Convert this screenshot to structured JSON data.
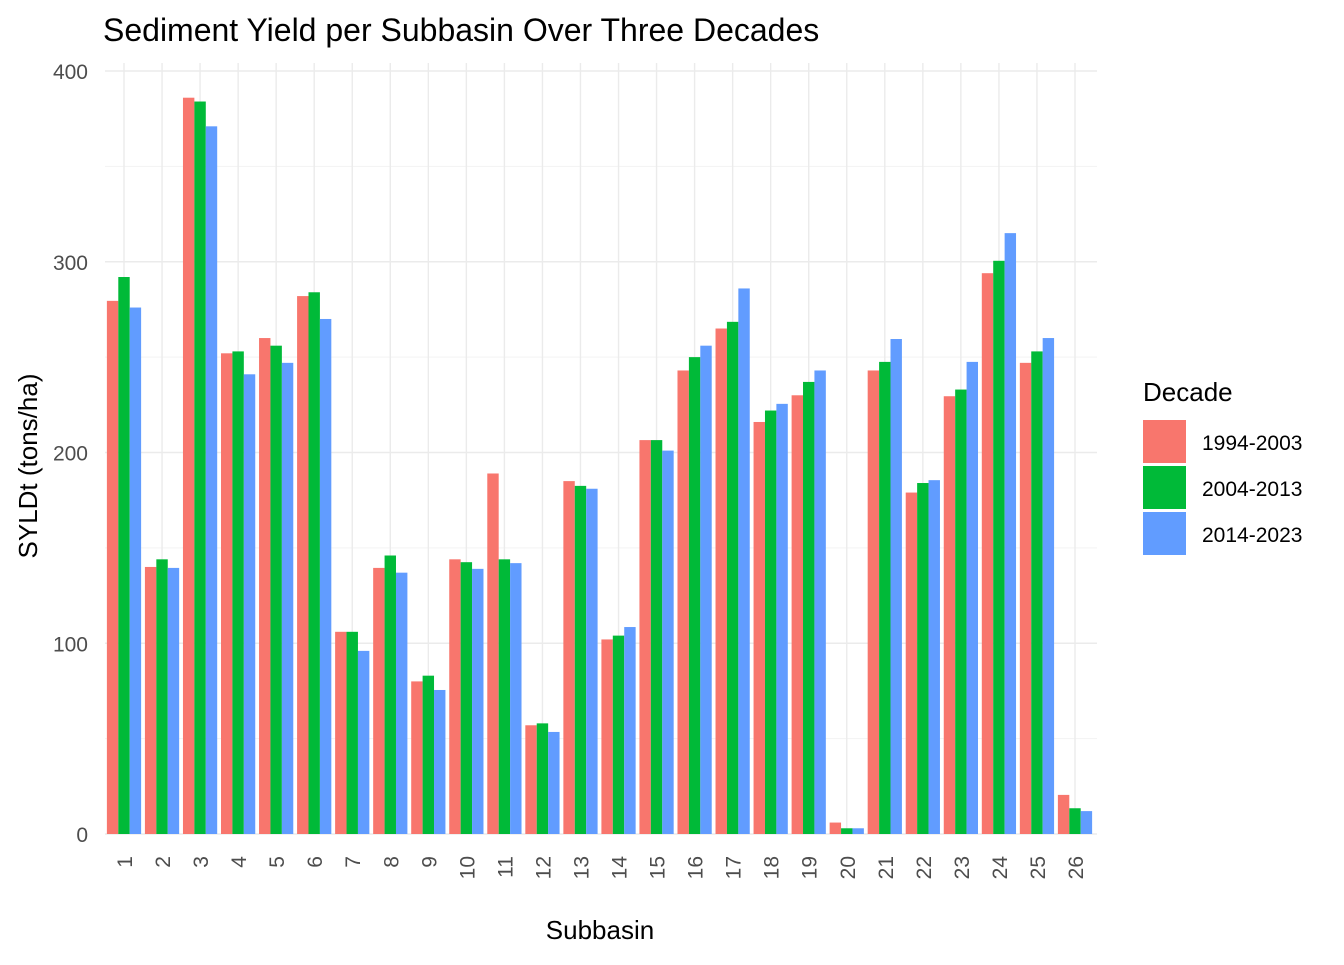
{
  "chart_data": {
    "type": "bar",
    "title": "Sediment Yield per Subbasin Over Three Decades",
    "xlabel": "Subbasin",
    "ylabel": "SYLDt (tons/ha)",
    "ylim": [
      0,
      400
    ],
    "yticks": [
      0,
      100,
      200,
      300,
      400
    ],
    "grid": true,
    "legend": {
      "title": "Decade",
      "placement": "right"
    },
    "categories": [
      "1",
      "2",
      "3",
      "4",
      "5",
      "6",
      "7",
      "8",
      "9",
      "10",
      "11",
      "12",
      "13",
      "14",
      "15",
      "16",
      "17",
      "18",
      "19",
      "20",
      "21",
      "22",
      "23",
      "24",
      "25",
      "26"
    ],
    "series": [
      {
        "name": "1994-2003",
        "color": "#F8766D",
        "values": [
          279.5,
          140,
          386,
          252,
          260,
          282,
          106,
          139.5,
          80,
          144,
          189,
          57,
          185,
          102,
          206.5,
          243,
          265,
          216,
          230,
          6,
          243,
          179,
          229.5,
          294,
          247,
          20.5
        ]
      },
      {
        "name": "2004-2013",
        "color": "#00BA38",
        "values": [
          292,
          144,
          384,
          253,
          256,
          284,
          106,
          146,
          83,
          142.5,
          144,
          58,
          182.5,
          104,
          206.5,
          250,
          268.5,
          222,
          237,
          3,
          247.5,
          184,
          233,
          300.5,
          253,
          13.5
        ]
      },
      {
        "name": "2014-2023",
        "color": "#619CFF",
        "values": [
          276,
          139.5,
          371,
          241,
          247,
          270,
          96,
          137,
          75.5,
          139,
          142,
          53.5,
          181,
          108.5,
          201,
          256,
          286,
          225.5,
          243,
          3,
          259.5,
          185.5,
          247.5,
          315,
          260,
          12
        ]
      }
    ]
  }
}
